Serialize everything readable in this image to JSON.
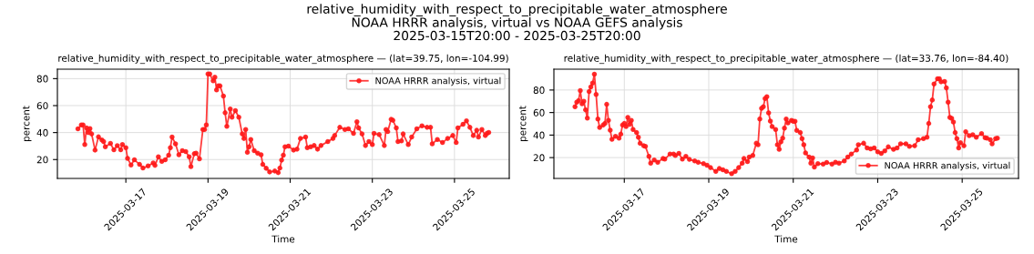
{
  "chart_data": [
    {
      "type": "line",
      "title": "relative_humidity_with_respect_to_precipitable_water_atmosphere — (lat=39.75, lon=-104.99)",
      "annotations": [
        "relative_humidity_with_respect_to_precipitable_water_atmosphere",
        "NOAA HRRR analysis, virtual vs NOAA GEFS analysis",
        "2025-03-15T20:00 - 2025-03-25T20:00"
      ],
      "xlabel": "Time",
      "ylabel": "percent",
      "xlim": [
        "2025-03-15T08:00",
        "2025-03-26T08:00"
      ],
      "xticks": [
        "2025-03-17",
        "2025-03-19",
        "2025-03-21",
        "2025-03-23",
        "2025-03-25"
      ],
      "ylim": [
        6,
        87
      ],
      "yticks": [
        20,
        40,
        60,
        80
      ],
      "grid": true,
      "legend": "top right",
      "marker": "circle",
      "line_style": "solid",
      "series": [
        {
          "name": "NOAA HRRR analysis, virtual",
          "color": "#ff1a1a",
          "x": [
            "2025-03-15T20:00",
            "2025-03-15T22:00",
            "2025-03-15T23:00",
            "2025-03-16T00:00",
            "2025-03-16T01:00",
            "2025-03-16T02:00",
            "2025-03-16T03:00",
            "2025-03-16T04:00",
            "2025-03-16T06:00",
            "2025-03-16T08:00",
            "2025-03-16T10:00",
            "2025-03-16T11:00",
            "2025-03-16T12:00",
            "2025-03-16T15:00",
            "2025-03-16T17:00",
            "2025-03-16T19:00",
            "2025-03-16T21:00",
            "2025-03-16T22:00",
            "2025-03-17T00:00",
            "2025-03-17T01:00",
            "2025-03-17T03:00",
            "2025-03-17T05:00",
            "2025-03-17T08:00",
            "2025-03-17T10:00",
            "2025-03-17T13:00",
            "2025-03-17T16:00",
            "2025-03-17T17:00",
            "2025-03-17T19:00",
            "2025-03-17T21:00",
            "2025-03-17T23:00",
            "2025-03-18T01:00",
            "2025-03-18T02:00",
            "2025-03-18T03:00",
            "2025-03-18T05:00",
            "2025-03-18T07:00",
            "2025-03-18T09:00",
            "2025-03-18T11:00",
            "2025-03-18T13:00",
            "2025-03-18T14:00",
            "2025-03-18T16:00",
            "2025-03-18T17:00",
            "2025-03-18T19:00",
            "2025-03-18T21:00",
            "2025-03-18T22:00",
            "2025-03-18T23:00",
            "2025-03-19T00:00",
            "2025-03-19T01:00",
            "2025-03-19T03:00",
            "2025-03-19T04:00",
            "2025-03-19T05:00",
            "2025-03-19T06:00",
            "2025-03-19T07:00",
            "2025-03-19T09:00",
            "2025-03-19T10:00",
            "2025-03-19T11:00",
            "2025-03-19T13:00",
            "2025-03-19T14:00",
            "2025-03-19T16:00",
            "2025-03-19T18:00",
            "2025-03-19T20:00",
            "2025-03-19T21:00",
            "2025-03-19T22:00",
            "2025-03-19T23:00",
            "2025-03-20T00:00",
            "2025-03-20T01:00",
            "2025-03-20T03:00",
            "2025-03-20T05:00",
            "2025-03-20T07:00",
            "2025-03-20T08:00",
            "2025-03-20T10:00",
            "2025-03-20T12:00",
            "2025-03-20T15:00",
            "2025-03-20T17:00",
            "2025-03-20T18:00",
            "2025-03-20T19:00",
            "2025-03-20T20:00",
            "2025-03-20T21:00",
            "2025-03-20T23:00",
            "2025-03-21T02:00",
            "2025-03-21T04:00",
            "2025-03-21T06:00",
            "2025-03-21T09:00",
            "2025-03-21T10:00",
            "2025-03-21T12:00",
            "2025-03-21T14:00",
            "2025-03-21T16:00",
            "2025-03-21T18:00",
            "2025-03-21T22:00",
            "2025-03-22T01:00",
            "2025-03-22T02:00",
            "2025-03-22T05:00",
            "2025-03-22T08:00",
            "2025-03-22T10:00",
            "2025-03-22T13:00",
            "2025-03-22T15:00",
            "2025-03-22T16:00",
            "2025-03-22T18:00",
            "2025-03-22T20:00",
            "2025-03-22T22:00",
            "2025-03-23T00:00",
            "2025-03-23T01:00",
            "2025-03-23T04:00",
            "2025-03-23T07:00",
            "2025-03-23T08:00",
            "2025-03-23T09:00",
            "2025-03-23T11:00",
            "2025-03-23T12:00",
            "2025-03-23T14:00",
            "2025-03-23T15:00",
            "2025-03-23T17:00",
            "2025-03-23T18:00",
            "2025-03-23T21:00",
            "2025-03-23T23:00",
            "2025-03-24T02:00",
            "2025-03-24T05:00",
            "2025-03-24T08:00",
            "2025-03-24T10:00",
            "2025-03-24T11:00",
            "2025-03-24T14:00",
            "2025-03-24T17:00",
            "2025-03-24T20:00",
            "2025-03-24T23:00",
            "2025-03-25T01:00",
            "2025-03-25T02:00",
            "2025-03-25T05:00",
            "2025-03-25T07:00",
            "2025-03-25T09:00",
            "2025-03-25T11:00",
            "2025-03-25T13:00",
            "2025-03-25T14:00",
            "2025-03-25T16:00",
            "2025-03-25T18:00",
            "2025-03-25T19:00",
            "2025-03-25T20:00"
          ],
          "values": [
            42.8,
            45.7,
            45.7,
            31.1,
            43.5,
            40,
            43,
            39,
            27,
            36.8,
            34.5,
            33.3,
            29.5,
            32,
            27.2,
            30.3,
            27.2,
            31.1,
            28.8,
            20.9,
            16,
            19.8,
            16.4,
            13.7,
            15.3,
            17.5,
            15.7,
            22,
            18.7,
            19.8,
            23.2,
            28.8,
            36.7,
            31.7,
            23.6,
            26.6,
            25.9,
            22,
            14.8,
            24.3,
            24.7,
            20.5,
            42.3,
            42.3,
            45.7,
            83.4,
            83.4,
            78.4,
            81.1,
            71.7,
            74.6,
            74.6,
            67.1,
            54.7,
            44.6,
            57.5,
            51.4,
            56.3,
            51.4,
            39,
            35.6,
            42.3,
            25.4,
            29.5,
            34.9,
            26.6,
            24.7,
            23.6,
            16.4,
            13.5,
            10.8,
            11.5,
            10.3,
            13.7,
            19.6,
            23.2,
            29.5,
            30,
            27,
            27.7,
            35.6,
            36.7,
            28.8,
            29.5,
            30.4,
            27.7,
            30.4,
            33.3,
            35.6,
            37.8,
            43.9,
            42.3,
            42.8,
            39.4,
            48,
            43.5,
            39,
            30.4,
            33.3,
            31.1,
            39.4,
            38.5,
            30.4,
            42.3,
            40.7,
            49.8,
            49.1,
            43.5,
            33.3,
            33.8,
            39,
            31.1,
            36.7,
            42.8,
            45,
            43.9,
            43.9,
            31.7,
            34.9,
            32.6,
            35.6,
            37.8,
            32.6,
            43.5,
            46.2,
            48.7,
            43.9,
            37.8,
            41.7,
            36.7,
            42.3,
            37.8,
            39.4,
            40.1
          ]
        }
      ]
    },
    {
      "type": "line",
      "title": "relative_humidity_with_respect_to_precipitable_water_atmosphere — (lat=33.76, lon=-84.40)",
      "xlabel": "Time",
      "ylabel": "percent",
      "xlim": [
        "2025-03-15T08:00",
        "2025-03-26T08:00"
      ],
      "xticks": [
        "2025-03-17",
        "2025-03-19",
        "2025-03-21",
        "2025-03-23",
        "2025-03-25"
      ],
      "ylim": [
        1.5,
        98.5
      ],
      "yticks": [
        20,
        40,
        60,
        80
      ],
      "grid": true,
      "legend": "bottom right",
      "marker": "circle",
      "line_style": "solid",
      "series": [
        {
          "name": "NOAA HRRR analysis, virtual",
          "color": "#ff1a1a",
          "x": [
            "2025-03-15T20:00",
            "2025-03-15T21:00",
            "2025-03-15T22:00",
            "2025-03-15T23:00",
            "2025-03-16T00:00",
            "2025-03-16T01:00",
            "2025-03-16T02:00",
            "2025-03-16T03:00",
            "2025-03-16T04:00",
            "2025-03-16T05:00",
            "2025-03-16T06:00",
            "2025-03-16T07:00",
            "2025-03-16T08:00",
            "2025-03-16T09:00",
            "2025-03-16T10:00",
            "2025-03-16T12:00",
            "2025-03-16T13:00",
            "2025-03-16T14:00",
            "2025-03-16T15:00",
            "2025-03-16T16:00",
            "2025-03-16T17:00",
            "2025-03-16T19:00",
            "2025-03-16T21:00",
            "2025-03-16T22:00",
            "2025-03-16T23:00",
            "2025-03-17T00:00",
            "2025-03-17T01:00",
            "2025-03-17T02:00",
            "2025-03-17T03:00",
            "2025-03-17T04:00",
            "2025-03-17T05:00",
            "2025-03-17T07:00",
            "2025-03-17T08:00",
            "2025-03-17T09:00",
            "2025-03-17T11:00",
            "2025-03-17T12:00",
            "2025-03-17T14:00",
            "2025-03-17T15:00",
            "2025-03-17T17:00",
            "2025-03-17T19:00",
            "2025-03-17T22:00",
            "2025-03-17T23:00",
            "2025-03-18T02:00",
            "2025-03-18T04:00",
            "2025-03-18T05:00",
            "2025-03-18T07:00",
            "2025-03-18T09:00",
            "2025-03-18T11:00",
            "2025-03-18T13:00",
            "2025-03-18T16:00",
            "2025-03-18T18:00",
            "2025-03-18T21:00",
            "2025-03-18T23:00",
            "2025-03-19T01:00",
            "2025-03-19T04:00",
            "2025-03-19T06:00",
            "2025-03-19T08:00",
            "2025-03-19T10:00",
            "2025-03-19T13:00",
            "2025-03-19T15:00",
            "2025-03-19T17:00",
            "2025-03-19T19:00",
            "2025-03-19T20:00",
            "2025-03-19T22:00",
            "2025-03-19T23:00",
            "2025-03-20T01:00",
            "2025-03-20T03:00",
            "2025-03-20T04:00",
            "2025-03-20T05:00",
            "2025-03-20T06:00",
            "2025-03-20T07:00",
            "2025-03-20T08:00",
            "2025-03-20T09:00",
            "2025-03-20T10:00",
            "2025-03-20T11:00",
            "2025-03-20T12:00",
            "2025-03-20T14:00",
            "2025-03-20T15:00",
            "2025-03-20T16:00",
            "2025-03-20T17:00",
            "2025-03-20T18:00",
            "2025-03-20T19:00",
            "2025-03-20T20:00",
            "2025-03-20T21:00",
            "2025-03-20T23:00",
            "2025-03-21T00:00",
            "2025-03-21T01:00",
            "2025-03-21T02:00",
            "2025-03-21T04:00",
            "2025-03-21T05:00",
            "2025-03-21T06:00",
            "2025-03-21T07:00",
            "2025-03-21T09:00",
            "2025-03-21T10:00",
            "2025-03-21T11:00",
            "2025-03-21T12:00",
            "2025-03-21T14:00",
            "2025-03-21T17:00",
            "2025-03-21T19:00",
            "2025-03-21T22:00",
            "2025-03-22T00:00",
            "2025-03-22T02:00",
            "2025-03-22T05:00",
            "2025-03-22T07:00",
            "2025-03-22T09:00",
            "2025-03-22T12:00",
            "2025-03-22T13:00",
            "2025-03-22T16:00",
            "2025-03-22T18:00",
            "2025-03-22T20:00",
            "2025-03-22T22:00",
            "2025-03-23T00:00",
            "2025-03-23T02:00",
            "2025-03-23T04:00",
            "2025-03-23T06:00",
            "2025-03-23T09:00",
            "2025-03-23T11:00",
            "2025-03-23T13:00",
            "2025-03-23T16:00",
            "2025-03-23T18:00",
            "2025-03-23T21:00",
            "2025-03-23T23:00",
            "2025-03-24T02:00",
            "2025-03-24T04:00",
            "2025-03-24T05:00",
            "2025-03-24T06:00",
            "2025-03-24T07:00",
            "2025-03-24T08:00",
            "2025-03-24T10:00",
            "2025-03-24T11:00",
            "2025-03-24T12:00",
            "2025-03-24T14:00",
            "2025-03-24T15:00",
            "2025-03-24T16:00",
            "2025-03-24T17:00",
            "2025-03-24T18:00",
            "2025-03-24T19:00",
            "2025-03-24T20:00",
            "2025-03-24T21:00",
            "2025-03-24T22:00",
            "2025-03-24T23:00",
            "2025-03-25T01:00",
            "2025-03-25T02:00",
            "2025-03-25T04:00",
            "2025-03-25T06:00",
            "2025-03-25T08:00",
            "2025-03-25T11:00",
            "2025-03-25T13:00",
            "2025-03-25T14:00",
            "2025-03-25T16:00",
            "2025-03-25T17:00",
            "2025-03-25T19:00",
            "2025-03-25T20:00"
          ],
          "values": [
            65.1,
            69.2,
            70.5,
            79.5,
            67.8,
            70,
            62.4,
            55.1,
            78.6,
            82.7,
            86.2,
            94.1,
            76,
            54.3,
            46.8,
            48.9,
            50.3,
            67.3,
            53,
            44.3,
            36.2,
            38.9,
            37.3,
            40.8,
            48.9,
            50.3,
            47.6,
            55.7,
            49.5,
            53,
            44.9,
            42.2,
            38.1,
            32.7,
            30.5,
            30,
            21.1,
            15.1,
            17.8,
            15.9,
            19.2,
            18.6,
            23.2,
            23.2,
            21.9,
            23.8,
            18.6,
            21.1,
            18.4,
            17,
            15.9,
            14.6,
            13.2,
            11.1,
            7.8,
            10.3,
            9.2,
            7.8,
            5.7,
            7.8,
            11.1,
            15.1,
            19.2,
            16.5,
            20.5,
            21.9,
            32.7,
            31.4,
            54.3,
            63.8,
            65.1,
            72.4,
            74.1,
            59.7,
            52.4,
            47.6,
            44.9,
            31.4,
            27.3,
            34.1,
            37.3,
            46.2,
            54.3,
            50.8,
            53,
            52.2,
            52.2,
            44.1,
            42.2,
            36.8,
            31.4,
            24.1,
            20.5,
            15.1,
            19.7,
            11.6,
            14.6,
            14.3,
            15.7,
            14.3,
            15.9,
            15.1,
            17,
            20.5,
            23.2,
            26.8,
            31.4,
            32.7,
            28.6,
            27.8,
            28.6,
            25.1,
            23.8,
            25.9,
            29.5,
            27.3,
            28.6,
            32.2,
            32.2,
            30,
            30.5,
            35.9,
            36.8,
            38.1,
            50.3,
            65.1,
            71.1,
            85.4,
            90,
            90,
            87.3,
            87.6,
            81.9,
            69.2,
            55.7,
            54.9,
            51.6,
            42.2,
            36.8,
            28.6,
            33.2,
            30.5,
            43,
            39.5,
            40.3,
            38.1,
            41.3,
            37.6,
            37.3,
            35.9,
            32.2,
            36.8,
            37.3
          ]
        }
      ]
    }
  ]
}
